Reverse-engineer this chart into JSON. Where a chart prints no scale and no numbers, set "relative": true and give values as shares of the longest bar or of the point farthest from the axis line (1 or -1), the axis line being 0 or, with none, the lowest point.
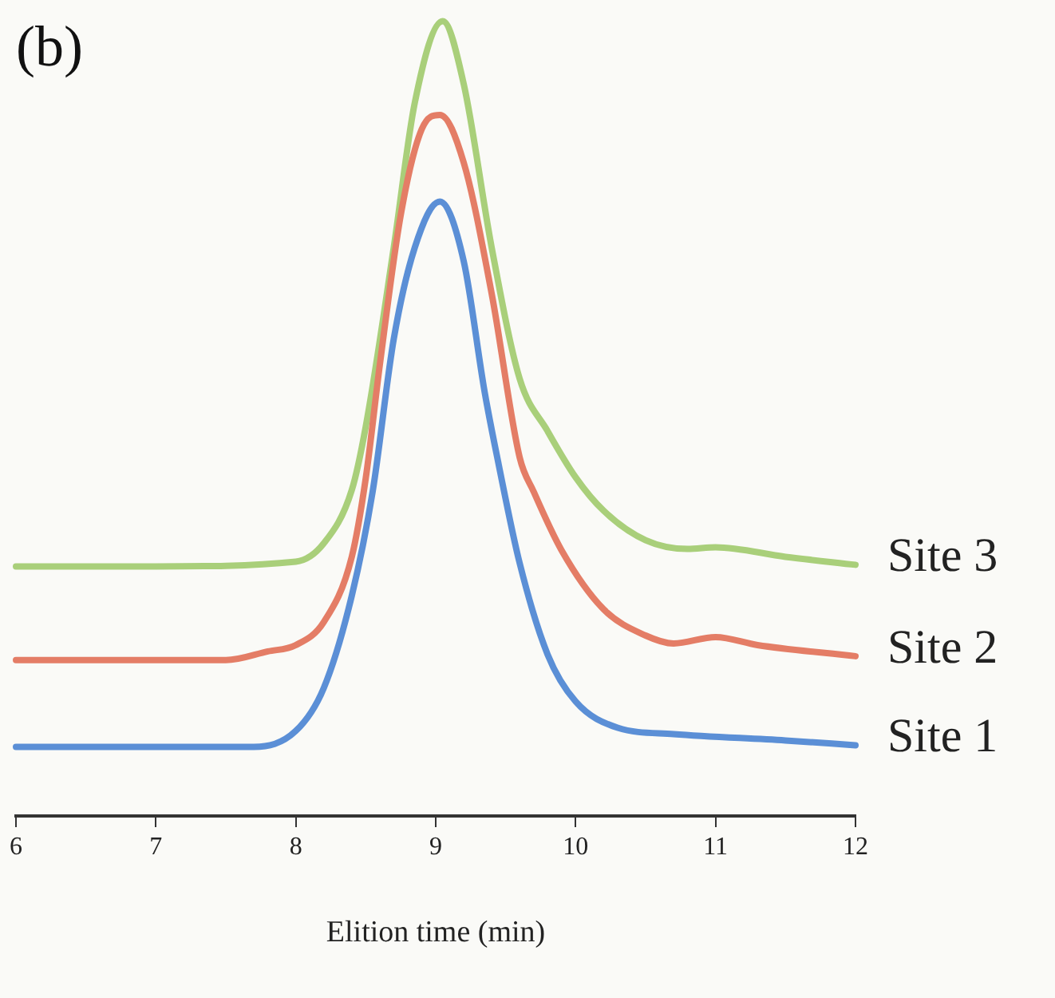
{
  "chart_data": {
    "type": "line",
    "title": "(b)",
    "xlabel": "Elition time (min)",
    "relative": true,
    "legend": false,
    "marker": "none",
    "xlim": [
      6,
      12
    ],
    "xticks": [
      6,
      7,
      8,
      9,
      10,
      11,
      12
    ],
    "series": [
      {
        "name": "Site 1",
        "color": "#5b8fd6",
        "x": [
          6,
          7,
          7.7,
          8,
          8.2,
          8.4,
          8.55,
          8.7,
          8.85,
          9.03,
          9.2,
          9.35,
          9.45,
          9.6,
          9.8,
          10,
          10.3,
          10.7,
          11.5,
          12
        ],
        "values": [
          0.087,
          0.087,
          0.087,
          0.107,
          0.161,
          0.277,
          0.409,
          0.6,
          0.715,
          0.773,
          0.698,
          0.533,
          0.442,
          0.318,
          0.203,
          0.144,
          0.111,
          0.103,
          0.095,
          0.089
        ]
      },
      {
        "name": "Site 2",
        "color": "#e47d66",
        "x": [
          6,
          7,
          7.5,
          7.8,
          8,
          8.2,
          8.4,
          8.5,
          8.6,
          8.75,
          8.9,
          9.03,
          9.2,
          9.4,
          9.6,
          9.7,
          9.9,
          10.2,
          10.5,
          10.7,
          11,
          11.3,
          12
        ],
        "values": [
          0.196,
          0.196,
          0.196,
          0.207,
          0.215,
          0.244,
          0.326,
          0.425,
          0.567,
          0.756,
          0.864,
          0.882,
          0.822,
          0.657,
          0.451,
          0.408,
          0.334,
          0.26,
          0.227,
          0.217,
          0.225,
          0.215,
          0.201
        ]
      },
      {
        "name": "Site 3",
        "color": "#a9cf7a",
        "x": [
          6,
          7,
          8,
          8.2,
          8.4,
          8.5,
          8.7,
          8.85,
          9.05,
          9.2,
          9.4,
          9.6,
          9.8,
          10,
          10.2,
          10.5,
          10.8,
          11,
          11.5,
          12
        ],
        "values": [
          0.314,
          0.314,
          0.32,
          0.343,
          0.41,
          0.49,
          0.715,
          0.897,
          1,
          0.921,
          0.715,
          0.55,
          0.484,
          0.426,
          0.384,
          0.347,
          0.336,
          0.338,
          0.326,
          0.316
        ]
      }
    ]
  }
}
